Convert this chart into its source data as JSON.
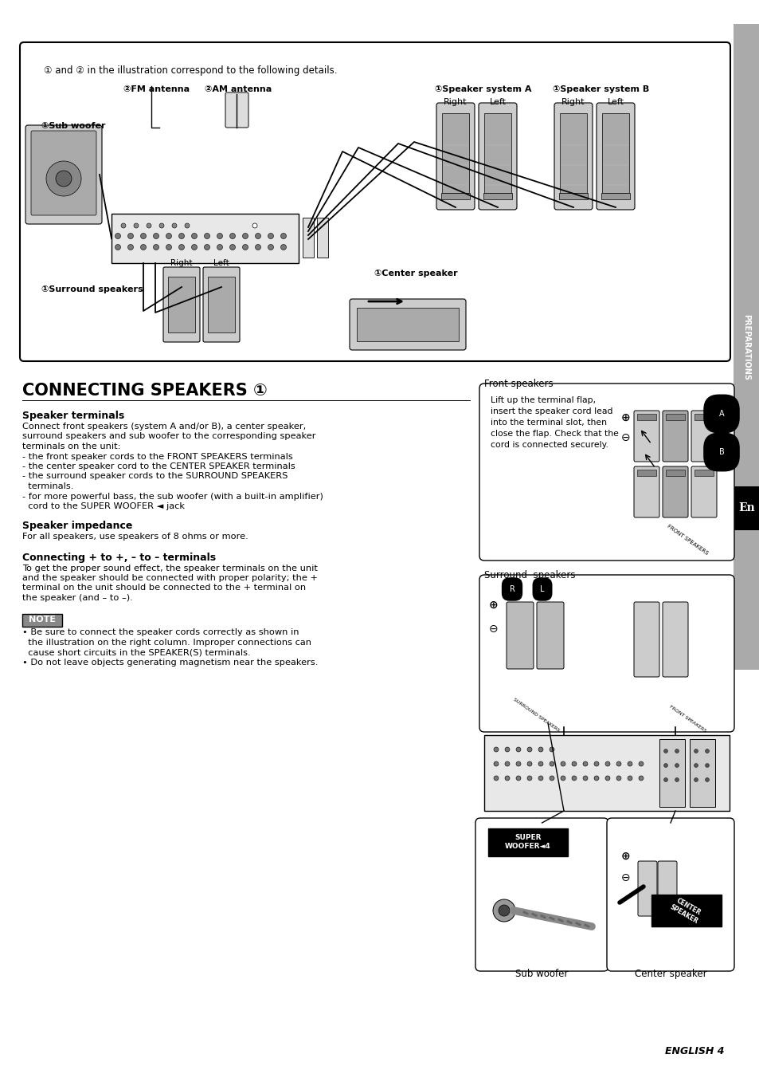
{
  "bg_color": "#ffffff",
  "sidebar_color": "#999999",
  "title": "CONNECTING SPEAKERS ①",
  "section1_title": "Speaker terminals",
  "section1_body": "Connect front speakers (system A and/or B), a center speaker,\nsurround speakers and sub woofer to the corresponding speaker\nterminals on the unit:\n- the front speaker cords to the FRONT SPEAKERS terminals\n- the center speaker cord to the CENTER SPEAKER terminals\n- the surround speaker cords to the SURROUND SPEAKERS\n  terminals.\n- for more powerful bass, the sub woofer (with a built-in amplifier)\n  cord to the SUPER WOOFER ◄ jack",
  "section2_title": "Speaker impedance",
  "section2_body": "For all speakers, use speakers of 8 ohms or more.",
  "section3_title": "Connecting + to +, – to – terminals",
  "section3_body": "To get the proper sound effect, the speaker terminals on the unit\nand the speaker should be connected with proper polarity; the +\nterminal on the unit should be connected to the + terminal on\nthe speaker (and – to –).",
  "note_label": "NOTE",
  "note_body": "• Be sure to connect the speaker cords correctly as shown in\n  the illustration on the right column. Improper connections can\n  cause short circuits in the SPEAKER(S) terminals.\n• Do not leave objects generating magnetism near the speakers.",
  "diag_note": "① and ② in the illustration correspond to the following details.",
  "label_fm": "②FM antenna",
  "label_am": "②AM antenna",
  "label_spk_a": "①Speaker system A",
  "label_spk_b": "①Speaker system B",
  "label_sub": "①Sub woofer",
  "label_surround": "①Surround speakers",
  "label_center": "①Center speaker",
  "label_right": "Right",
  "label_left": "Left",
  "label_front_spk": "Front speakers",
  "front_spk_text": "Lift up the terminal flap,\ninsert the speaker cord lead\ninto the terminal slot, then\nclose the flap. Check that the\ncord is connected securely.",
  "label_surround_spk": "Surround  speakers",
  "label_sub_woofer": "Sub woofer",
  "label_center_spk": "Center speaker",
  "label_en": "En",
  "footer": "ENGLISH 4",
  "preps_text": "PREPARATIONS"
}
